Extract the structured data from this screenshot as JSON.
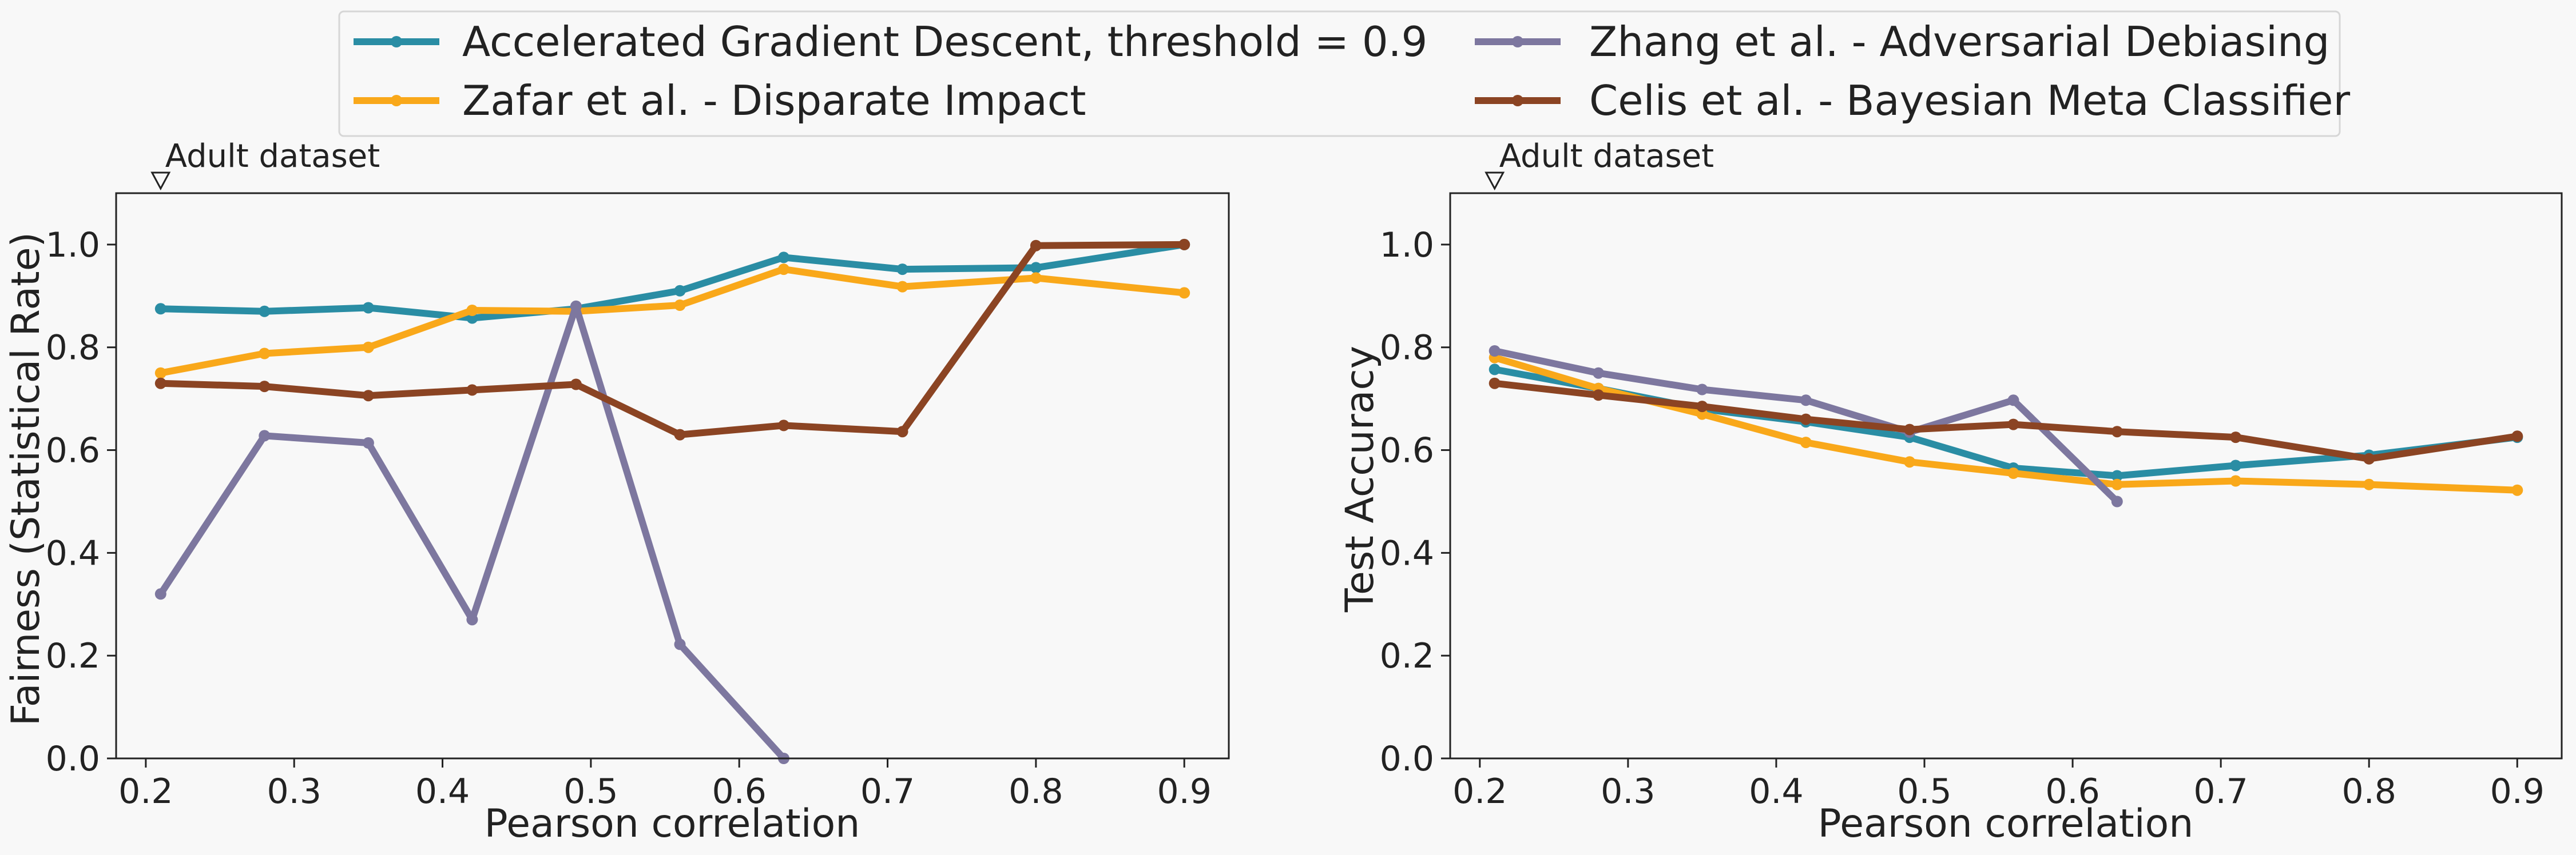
{
  "chart_data": [
    {
      "type": "line",
      "xlabel": "Pearson correlation",
      "ylabel": "Fairness (Statistical Rate)",
      "xlim": [
        0.18,
        0.93
      ],
      "ylim": [
        0.0,
        1.1
      ],
      "xticks": [
        "0.2",
        "0.3",
        "0.4",
        "0.5",
        "0.6",
        "0.7",
        "0.8",
        "0.9"
      ],
      "yticks": [
        "0.0",
        "0.2",
        "0.4",
        "0.6",
        "0.8",
        "1.0"
      ],
      "annotation": {
        "text": "Adult dataset",
        "x": 0.21
      },
      "grid": false,
      "series": [
        {
          "name": "Accelerated Gradient Descent, threshold = 0.9",
          "color": "#2a8da4",
          "x": [
            0.21,
            0.28,
            0.35,
            0.42,
            0.49,
            0.56,
            0.63,
            0.71,
            0.8,
            0.9
          ],
          "y": [
            0.875,
            0.87,
            0.877,
            0.857,
            0.875,
            0.91,
            0.975,
            0.952,
            0.955,
            1.0
          ]
        },
        {
          "name": "Zafar et al. - Disparate Impact",
          "color": "#f9a81a",
          "x": [
            0.21,
            0.28,
            0.35,
            0.42,
            0.49,
            0.56,
            0.63,
            0.71,
            0.8,
            0.9
          ],
          "y": [
            0.75,
            0.788,
            0.8,
            0.872,
            0.87,
            0.882,
            0.952,
            0.918,
            0.935,
            0.906
          ]
        },
        {
          "name": "Zhang et al. - Adversarial Debiasing",
          "color": "#7d779f",
          "x": [
            0.21,
            0.28,
            0.35,
            0.42,
            0.49,
            0.56,
            0.63
          ],
          "y": [
            0.32,
            0.628,
            0.614,
            0.27,
            0.88,
            0.222,
            0.0
          ]
        },
        {
          "name": "Celis et al. - Bayesian Meta Classifier",
          "color": "#8b4423",
          "x": [
            0.21,
            0.28,
            0.35,
            0.42,
            0.49,
            0.56,
            0.63,
            0.71,
            0.8,
            0.9
          ],
          "y": [
            0.73,
            0.724,
            0.706,
            0.717,
            0.728,
            0.63,
            0.648,
            0.636,
            0.998,
            1.0
          ]
        }
      ]
    },
    {
      "type": "line",
      "xlabel": "Pearson correlation",
      "ylabel": "Test Accuracy",
      "xlim": [
        0.18,
        0.93
      ],
      "ylim": [
        0.0,
        1.1
      ],
      "xticks": [
        "0.2",
        "0.3",
        "0.4",
        "0.5",
        "0.6",
        "0.7",
        "0.8",
        "0.9"
      ],
      "yticks": [
        "0.0",
        "0.2",
        "0.4",
        "0.6",
        "0.8",
        "1.0"
      ],
      "annotation": {
        "text": "Adult dataset",
        "x": 0.21
      },
      "grid": false,
      "series": [
        {
          "name": "Accelerated Gradient Descent, threshold = 0.9",
          "color": "#2a8da4",
          "x": [
            0.21,
            0.28,
            0.35,
            0.42,
            0.49,
            0.56,
            0.63,
            0.71,
            0.8,
            0.9
          ],
          "y": [
            0.757,
            0.72,
            0.68,
            0.655,
            0.625,
            0.565,
            0.55,
            0.57,
            0.59,
            0.625
          ]
        },
        {
          "name": "Zafar et al. - Disparate Impact",
          "color": "#f9a81a",
          "x": [
            0.21,
            0.28,
            0.35,
            0.42,
            0.49,
            0.56,
            0.63,
            0.71,
            0.8,
            0.9
          ],
          "y": [
            0.78,
            0.72,
            0.67,
            0.615,
            0.577,
            0.555,
            0.533,
            0.54,
            0.533,
            0.522
          ]
        },
        {
          "name": "Zhang et al. - Adversarial Debiasing",
          "color": "#7d779f",
          "x": [
            0.21,
            0.28,
            0.35,
            0.42,
            0.49,
            0.56,
            0.63
          ],
          "y": [
            0.793,
            0.75,
            0.718,
            0.697,
            0.635,
            0.697,
            0.5
          ]
        },
        {
          "name": "Celis et al. - Bayesian Meta Classifier",
          "color": "#8b4423",
          "x": [
            0.21,
            0.28,
            0.35,
            0.42,
            0.49,
            0.56,
            0.63,
            0.71,
            0.8,
            0.9
          ],
          "y": [
            0.73,
            0.707,
            0.685,
            0.66,
            0.64,
            0.65,
            0.636,
            0.625,
            0.583,
            0.627
          ]
        }
      ]
    }
  ],
  "legend": {
    "placement": "top-center",
    "items": [
      {
        "label": "Accelerated Gradient Descent, threshold = 0.9",
        "color": "#2a8da4"
      },
      {
        "label": "Zhang et al. - Adversarial Debiasing",
        "color": "#7d779f"
      },
      {
        "label": "Zafar et al. - Disparate Impact",
        "color": "#f9a81a"
      },
      {
        "label": "Celis et al. - Bayesian Meta Classifier",
        "color": "#8b4423"
      }
    ]
  }
}
